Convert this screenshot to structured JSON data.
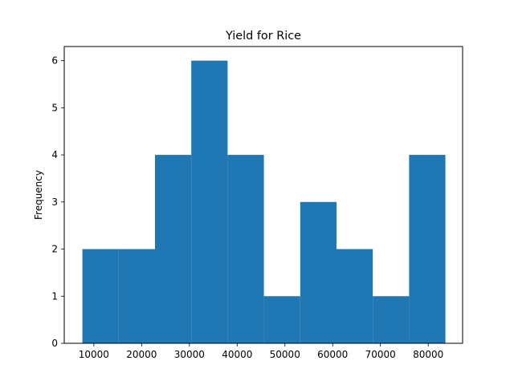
{
  "chart_data": {
    "type": "bar",
    "title": "Yield for Rice",
    "xlabel": "",
    "ylabel": "Frequency",
    "xlim": [
      3800,
      87200
    ],
    "ylim": [
      0,
      6.3
    ],
    "xticks": [
      10000,
      20000,
      30000,
      40000,
      50000,
      60000,
      70000,
      80000
    ],
    "yticks": [
      0,
      1,
      2,
      3,
      4,
      5,
      6
    ],
    "bins": [
      {
        "x0": 7600,
        "x1": 15200,
        "count": 2
      },
      {
        "x0": 15200,
        "x1": 22800,
        "count": 2
      },
      {
        "x0": 22800,
        "x1": 30400,
        "count": 4
      },
      {
        "x0": 30400,
        "x1": 38000,
        "count": 6
      },
      {
        "x0": 38000,
        "x1": 45600,
        "count": 4
      },
      {
        "x0": 45600,
        "x1": 53200,
        "count": 1
      },
      {
        "x0": 53200,
        "x1": 60800,
        "count": 3
      },
      {
        "x0": 60800,
        "x1": 68400,
        "count": 2
      },
      {
        "x0": 68400,
        "x1": 76000,
        "count": 1
      },
      {
        "x0": 76000,
        "x1": 83600,
        "count": 4
      }
    ],
    "bar_color": "#1f77b4",
    "grid": false,
    "legend": false
  }
}
